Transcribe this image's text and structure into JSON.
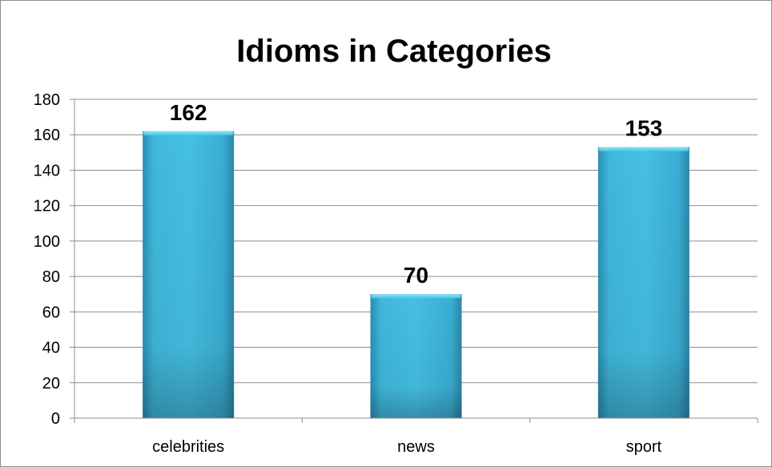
{
  "chart_data": {
    "type": "bar",
    "title": "Idioms in Categories",
    "categories": [
      "celebrities",
      "news",
      "sport"
    ],
    "values": [
      162,
      70,
      153
    ],
    "data_labels": [
      "162",
      "70",
      "153"
    ],
    "ylim": [
      0,
      180
    ],
    "y_ticks": [
      "0",
      "20",
      "40",
      "60",
      "80",
      "100",
      "120",
      "140",
      "160",
      "180"
    ],
    "grid": true,
    "legend": "none",
    "bar_color": "#3fb5d8",
    "bar_color_dark": "#2a86a8"
  }
}
